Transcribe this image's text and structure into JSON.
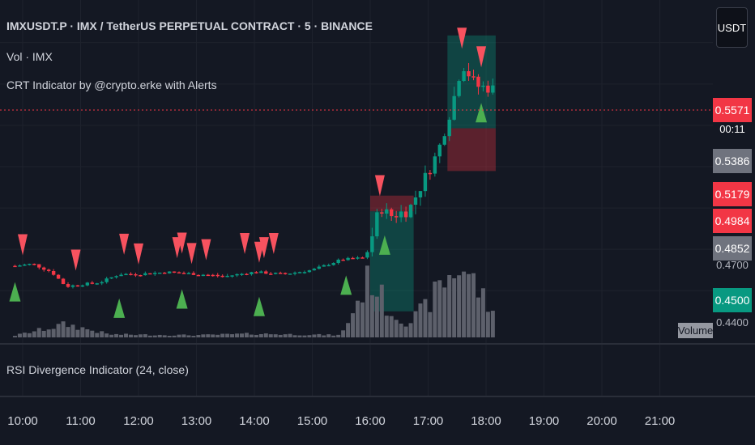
{
  "header": {
    "symbol_title": "IMXUSDT.P · IMX / TetherUS PERPETUAL CONTRACT · 5 · BINANCE",
    "volume_legend": "Vol · IMX",
    "crt_legend": "CRT Indicator by @crypto.erke with Alerts",
    "rsi_legend": "RSI Divergence Indicator (24, close)",
    "currency_button": "USDT"
  },
  "price_axis": {
    "current_price": "0.5571",
    "countdown": "00:11",
    "tags": [
      "0.5386",
      "0.5179",
      "0.4984",
      "0.4852",
      "0.4500"
    ],
    "partial_labels": [
      "0.4700",
      "0.4400"
    ],
    "volume_tag": "Volume"
  },
  "colors": {
    "background": "#141823",
    "up": "#089981",
    "down": "#f23645",
    "bear_signal": "#f7525f",
    "bull_signal": "#4caf50",
    "volume": "#5d606b",
    "price_line": "#f23645"
  },
  "chart_data": {
    "type": "candlestick",
    "symbol": "IMXUSDT.P",
    "interval": "5",
    "x_ticks": [
      "10:00",
      "11:00",
      "12:00",
      "13:00",
      "14:00",
      "15:00",
      "16:00",
      "17:00",
      "18:00",
      "19:00",
      "20:00",
      "21:00"
    ],
    "y_range": [
      0.437,
      0.585
    ],
    "last_price": 0.5571,
    "price_path": [
      [
        "09:52",
        0.472
      ],
      [
        "10:10",
        0.473
      ],
      [
        "10:30",
        0.469
      ],
      [
        "10:45",
        0.462
      ],
      [
        "11:00",
        0.463
      ],
      [
        "11:20",
        0.464
      ],
      [
        "11:40",
        0.468
      ],
      [
        "12:00",
        0.468
      ],
      [
        "12:30",
        0.469
      ],
      [
        "13:00",
        0.468
      ],
      [
        "13:30",
        0.467
      ],
      [
        "14:00",
        0.469
      ],
      [
        "14:30",
        0.468
      ],
      [
        "15:00",
        0.47
      ],
      [
        "15:30",
        0.475
      ],
      [
        "15:55",
        0.476
      ],
      [
        "16:00",
        0.483
      ],
      [
        "16:10",
        0.501
      ],
      [
        "16:20",
        0.496
      ],
      [
        "16:40",
        0.499
      ],
      [
        "16:55",
        0.513
      ],
      [
        "17:10",
        0.527
      ],
      [
        "17:25",
        0.55
      ],
      [
        "17:35",
        0.57
      ],
      [
        "17:50",
        0.559
      ],
      [
        "18:05",
        0.558
      ],
      [
        "18:10",
        0.5571
      ]
    ],
    "volume_profile": [
      [
        "09:50",
        0.02
      ],
      [
        "10:45",
        0.18
      ],
      [
        "11:30",
        0.04
      ],
      [
        "13:00",
        0.03
      ],
      [
        "14:00",
        0.05
      ],
      [
        "15:30",
        0.03
      ],
      [
        "16:00",
        0.85
      ],
      [
        "16:20",
        0.35
      ],
      [
        "16:40",
        0.2
      ],
      [
        "17:00",
        0.45
      ],
      [
        "17:15",
        0.75
      ],
      [
        "17:35",
        1.0
      ],
      [
        "17:50",
        0.7
      ],
      [
        "18:10",
        0.25
      ]
    ],
    "bear_signals": [
      "10:00",
      "10:55",
      "11:45",
      "12:00",
      "12:40",
      "12:45",
      "12:55",
      "13:10",
      "13:50",
      "14:05",
      "14:10",
      "14:20",
      "16:10",
      "17:35",
      "17:55"
    ],
    "bull_signals": [
      "09:52",
      "11:40",
      "12:45",
      "14:05",
      "15:35",
      "16:15",
      "17:55"
    ],
    "zones": [
      {
        "kind": "bullish",
        "from": "17:20",
        "to": "18:10",
        "low": 0.5386,
        "high": 0.5835
      },
      {
        "kind": "bearish",
        "from": "17:20",
        "to": "18:10",
        "low": 0.5179,
        "high": 0.5386
      },
      {
        "kind": "bearish",
        "from": "16:00",
        "to": "16:45",
        "low": 0.4984,
        "high": 0.506
      },
      {
        "kind": "bullish",
        "from": "16:00",
        "to": "16:45",
        "low": 0.45,
        "high": 0.4984
      }
    ],
    "grid": true
  }
}
